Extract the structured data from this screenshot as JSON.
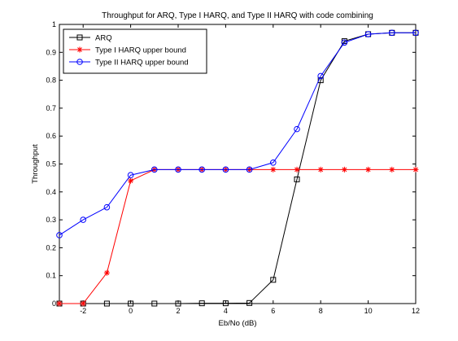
{
  "chart_data": {
    "type": "line",
    "title": "Throughput for ARQ, Type I HARQ, and Type II HARQ with code combining",
    "xlabel": "Eb/No (dB)",
    "ylabel": "Throughput",
    "xlim": [
      -3,
      12
    ],
    "ylim": [
      0,
      1
    ],
    "xticks": [
      -2,
      0,
      2,
      4,
      6,
      8,
      10,
      12
    ],
    "yticks": [
      0,
      0.1,
      0.2,
      0.3,
      0.4,
      0.5,
      0.6,
      0.7,
      0.8,
      0.9,
      1
    ],
    "xtick_labels": [
      "-2",
      "0",
      "2",
      "4",
      "6",
      "8",
      "10",
      "12"
    ],
    "ytick_labels": [
      "0",
      "0.1",
      "0.2",
      "0.3",
      "0.4",
      "0.5",
      "0.6",
      "0.7",
      "0.8",
      "0.9",
      "1"
    ],
    "grid": false,
    "legend_position": "top-left",
    "series": [
      {
        "name": "ARQ",
        "color": "#000000",
        "marker": "square",
        "x": [
          -3,
          -2,
          -1,
          0,
          1,
          2,
          3,
          4,
          5,
          6,
          7,
          8,
          9,
          10,
          11,
          12
        ],
        "y": [
          0,
          0,
          0,
          0,
          0,
          0,
          0.001,
          0.001,
          0.002,
          0.085,
          0.445,
          0.8,
          0.94,
          0.965,
          0.97,
          0.97
        ]
      },
      {
        "name": "Type I HARQ upper bound",
        "color": "#ff0000",
        "marker": "asterisk",
        "x": [
          -3,
          -2,
          -1,
          0,
          1,
          2,
          3,
          4,
          5,
          6,
          7,
          8,
          9,
          10,
          11,
          12
        ],
        "y": [
          0,
          0,
          0.11,
          0.44,
          0.48,
          0.48,
          0.48,
          0.48,
          0.48,
          0.48,
          0.48,
          0.48,
          0.48,
          0.48,
          0.48,
          0.48
        ]
      },
      {
        "name": "Type II HARQ upper bound",
        "color": "#0000ff",
        "marker": "circle",
        "x": [
          -3,
          -2,
          -1,
          0,
          1,
          2,
          3,
          4,
          5,
          6,
          7,
          8,
          9,
          10,
          11,
          12
        ],
        "y": [
          0.245,
          0.3,
          0.345,
          0.46,
          0.48,
          0.48,
          0.48,
          0.48,
          0.48,
          0.505,
          0.625,
          0.815,
          0.935,
          0.965,
          0.97,
          0.97
        ]
      }
    ]
  }
}
